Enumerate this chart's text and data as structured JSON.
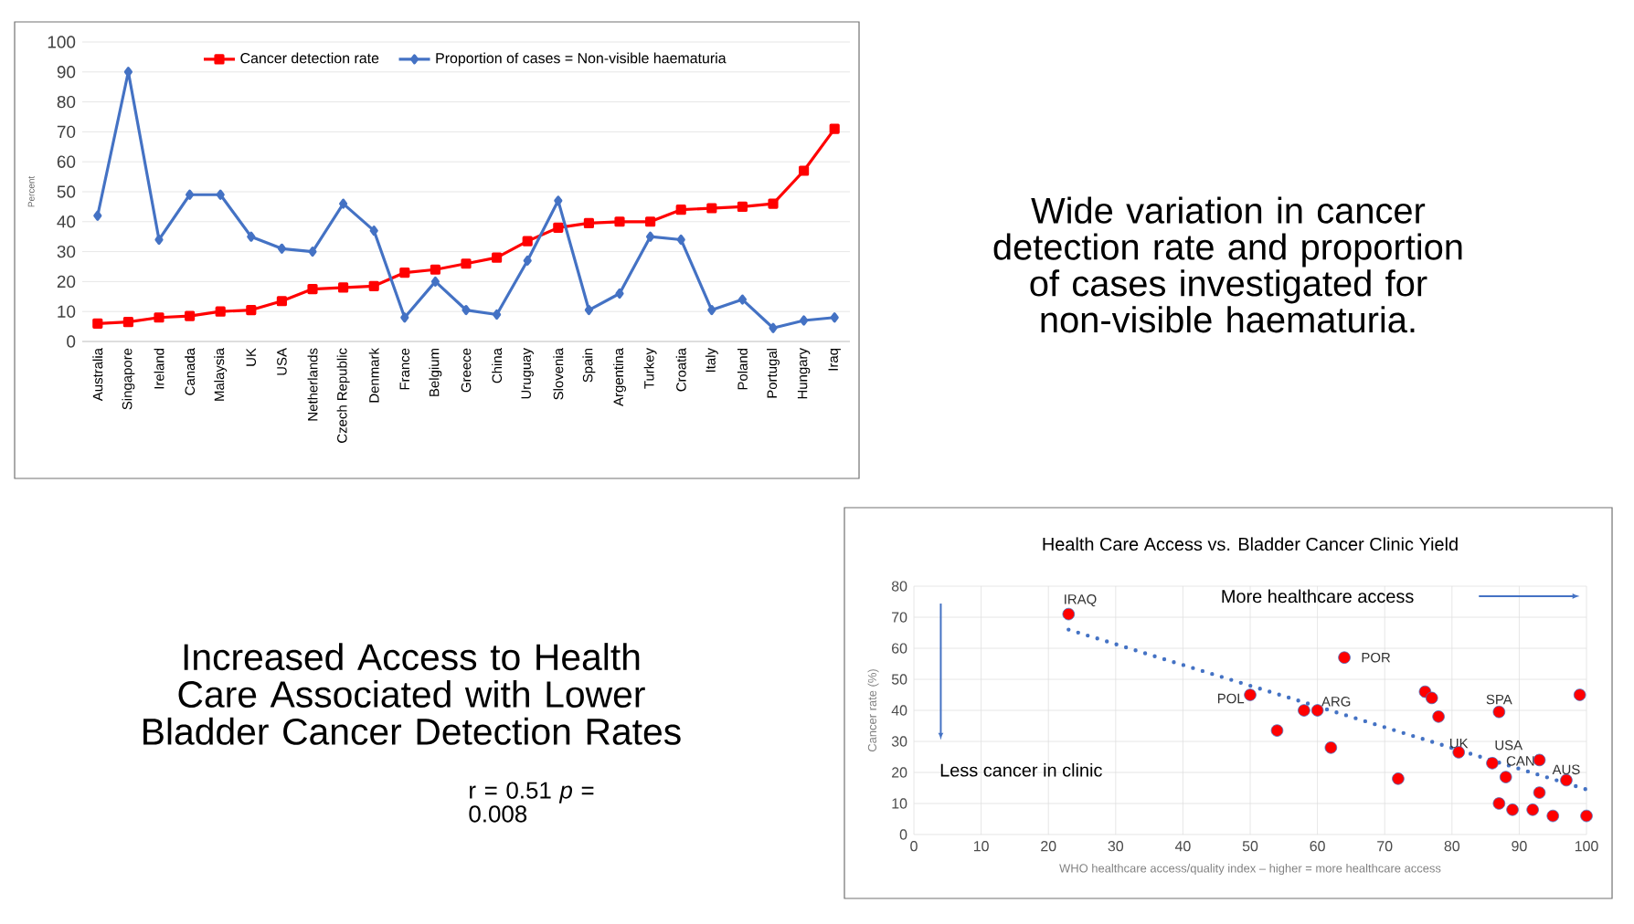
{
  "chart_data": [
    {
      "type": "line",
      "ylabel": "Percent",
      "categories": [
        "Australia",
        "Singapore",
        "Ireland",
        "Canada",
        "Malaysia",
        "UK",
        "USA",
        "Netherlands",
        "Czech Republic",
        "Denmark",
        "France",
        "Belgium",
        "Greece",
        "China",
        "Uruguay",
        "Slovenia",
        "Spain",
        "Argentina",
        "Turkey",
        "Croatia",
        "Italy",
        "Poland",
        "Portugal",
        "Hungary",
        "Iraq"
      ],
      "series": [
        {
          "name": "Cancer detection rate",
          "color": "#ff0000",
          "marker": "square",
          "values": [
            6,
            6.5,
            8,
            8.5,
            10,
            10.5,
            13.5,
            17.5,
            18,
            18.5,
            23,
            24,
            26,
            28,
            33.5,
            38,
            39.5,
            40,
            40,
            44,
            44.5,
            45,
            46,
            57,
            71
          ]
        },
        {
          "name": "Proportion of cases = Non-visible haematuria",
          "color": "#4472c4",
          "marker": "diamond",
          "values": [
            42,
            90,
            34,
            49,
            49,
            35,
            31,
            30,
            46,
            37,
            8,
            20,
            10.5,
            9,
            27,
            47,
            10.5,
            16,
            35,
            34,
            10.5,
            14,
            4.5,
            7,
            8
          ]
        }
      ],
      "ylim": [
        0,
        100
      ],
      "yticks": [
        0,
        10,
        20,
        30,
        40,
        50,
        60,
        70,
        80,
        90,
        100
      ],
      "grid": "y",
      "legend": "top",
      "line_style": "solid"
    },
    {
      "type": "scatter",
      "title": "Health Care Access vs. Bladder Cancer Clinic Yield",
      "xlabel": "WHO healthcare access/quality index – higher = more healthcare access",
      "ylabel": "Cancer rate (%)",
      "series": [
        {
          "type": "scatter",
          "color": "#ff0000",
          "marker": "circle",
          "x": [
            23,
            64,
            50,
            58,
            60,
            54,
            62,
            72,
            76,
            77,
            78,
            81,
            86,
            87,
            87,
            88,
            89,
            92,
            93,
            93,
            95,
            97,
            99,
            100
          ],
          "values": [
            71,
            57,
            45,
            40,
            40,
            33.5,
            28,
            18,
            46,
            44,
            38,
            26.5,
            23,
            39.5,
            10,
            18.5,
            8,
            8,
            24,
            13.5,
            6,
            17.5,
            45,
            6
          ]
        },
        {
          "type": "line",
          "color": "#4472c4",
          "marker": "none",
          "line_style": "dotted",
          "x": [
            23,
            100
          ],
          "values": [
            66,
            14.5
          ]
        }
      ],
      "xlim": [
        0,
        100
      ],
      "xticks": [
        0,
        10,
        20,
        30,
        40,
        50,
        60,
        70,
        80,
        90,
        100
      ],
      "ylim": [
        0,
        80
      ],
      "yticks": [
        0,
        10,
        20,
        30,
        40,
        50,
        60,
        70,
        80
      ],
      "grid": true,
      "annotations": [
        {
          "text": "IRAQ",
          "x": 23,
          "y": 71
        },
        {
          "text": "POR",
          "x": 64,
          "y": 57
        },
        {
          "text": "POL",
          "x": 50,
          "y": 45
        },
        {
          "text": "ARG",
          "x": 60,
          "y": 40
        },
        {
          "text": "SPA",
          "x": 87,
          "y": 39.5
        },
        {
          "text": "UK",
          "x": 81,
          "y": 26.5
        },
        {
          "text": "USA",
          "x": 86,
          "y": 23
        },
        {
          "text": "CAN",
          "x": 88,
          "y": 18.5
        },
        {
          "text": "AUS",
          "x": 97,
          "y": 17.5
        },
        "More healthcare access",
        "Less cancer in clinic"
      ]
    },
    {
      "type": "other",
      "annotations": [
        "Wide variation in cancer detection rate and proportion of cases investigated for non-visible haematuria.",
        "Increased Access to Health Care Associated with Lower Bladder Cancer Detection Rates",
        "r = 0.51 *p* = 0.008"
      ]
    }
  ]
}
